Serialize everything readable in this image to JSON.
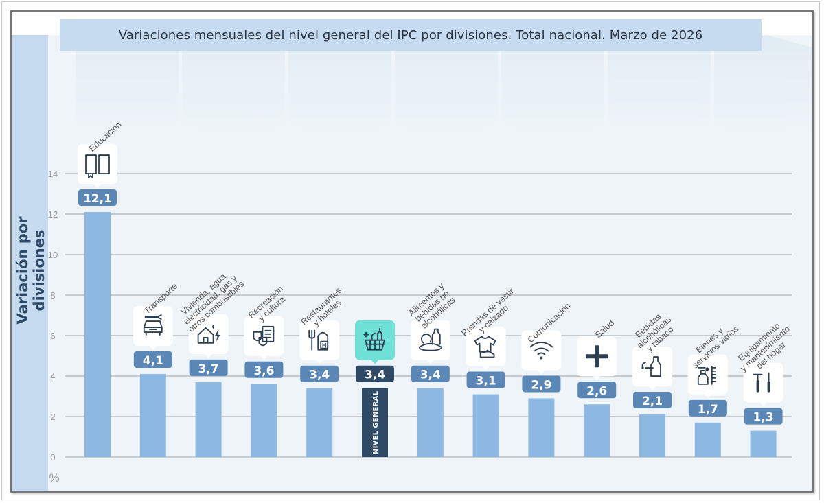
{
  "chart_data": {
    "type": "bar",
    "title": "Variaciones mensuales del nivel general del IPC por divisiones. Total nacional. Marzo de 2026",
    "xlabel": "",
    "ylabel": "Variación por divisiones",
    "y_unit_label": "%",
    "ylim": [
      0,
      14
    ],
    "yticks": [
      "0",
      "2",
      "4",
      "6",
      "8",
      "10",
      "12",
      "14"
    ],
    "grid": true,
    "legend": "none",
    "highlight_color": "#2f4a66",
    "bar_color": "#8db8e2",
    "label_color": "#5b87b7",
    "highlight_icon_bg": "#6fe0d6",
    "categories": [
      {
        "name": "Educación",
        "lines": [
          "Educación"
        ],
        "value": 12.1,
        "label": "12,1",
        "icon": "book-icon",
        "highlight": false
      },
      {
        "name": "Transporte",
        "lines": [
          "Transporte"
        ],
        "value": 4.1,
        "label": "4,1",
        "icon": "car-wrench-icon",
        "highlight": false
      },
      {
        "name": "Vivienda, agua, electricidad, gas y otros combustibles",
        "lines": [
          "Vivienda, agua,",
          "electricidad, gas y",
          "otros combustibles"
        ],
        "value": 3.7,
        "label": "3,7",
        "icon": "house-utilities-icon",
        "highlight": false
      },
      {
        "name": "Recreación y cultura",
        "lines": [
          "Recreación",
          "y cultura"
        ],
        "value": 3.6,
        "label": "3,6",
        "icon": "theater-masks-icon",
        "highlight": false
      },
      {
        "name": "Restaurantes y hoteles",
        "lines": [
          "Restaurantes",
          "y hoteles"
        ],
        "value": 3.4,
        "label": "3,4",
        "icon": "fork-hotel-icon",
        "highlight": false
      },
      {
        "name": "NIVEL GENERAL",
        "lines": [],
        "value": 3.4,
        "label": "3,4",
        "icon": "shopping-basket-icon",
        "highlight": true,
        "bar_text": "NIVEL GENERAL"
      },
      {
        "name": "Alimentos y bebidas no alcohólicas",
        "lines": [
          "Alimentos y",
          "bebidas no",
          "alcohólicas"
        ],
        "value": 3.4,
        "label": "3,4",
        "icon": "food-bottle-icon",
        "highlight": false
      },
      {
        "name": "Prendas de vestir y calzado",
        "lines": [
          "Prendas de vestir",
          "y calzado"
        ],
        "value": 3.1,
        "label": "3,1",
        "icon": "tshirt-shoe-icon",
        "highlight": false
      },
      {
        "name": "Comunicación",
        "lines": [
          "Comunicación"
        ],
        "value": 2.9,
        "label": "2,9",
        "icon": "wifi-icon",
        "highlight": false
      },
      {
        "name": "Salud",
        "lines": [
          "Salud"
        ],
        "value": 2.6,
        "label": "2,6",
        "icon": "plus-cross-icon",
        "highlight": false
      },
      {
        "name": "Bebidas alcohólicas y tabaco",
        "lines": [
          "Bebidas",
          "alcohólicas",
          "y tabaco"
        ],
        "value": 2.1,
        "label": "2,1",
        "icon": "bottle-cigarette-icon",
        "highlight": false
      },
      {
        "name": "Bienes y servicios varios",
        "lines": [
          "Bienes y",
          "servicios varios"
        ],
        "value": 1.7,
        "label": "1,7",
        "icon": "spray-comb-icon",
        "highlight": false
      },
      {
        "name": "Equipamiento y mantenimiento del hogar",
        "lines": [
          "Equipamiento",
          "y mantenimiento",
          "del hogar"
        ],
        "value": 1.3,
        "label": "1,3",
        "icon": "tools-icon",
        "highlight": false
      }
    ]
  }
}
